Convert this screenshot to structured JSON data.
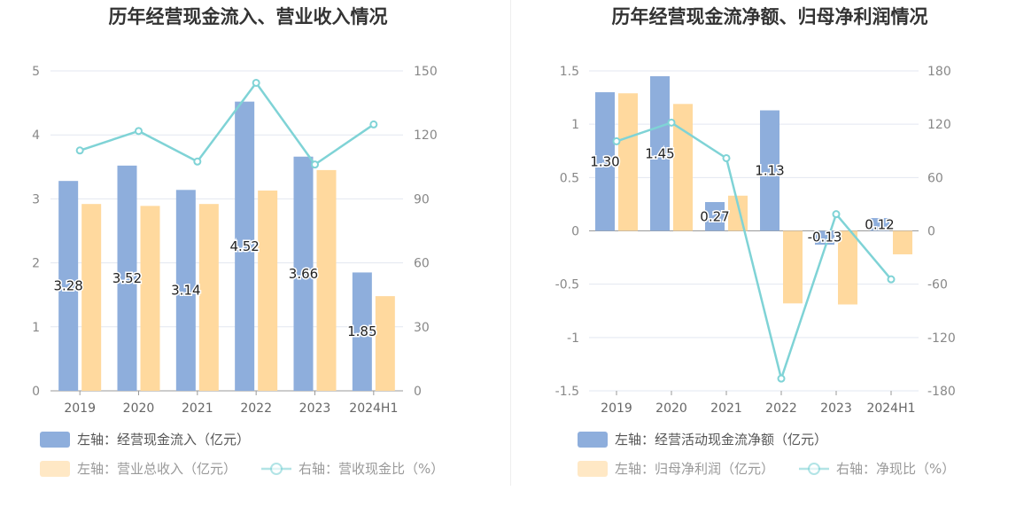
{
  "colors": {
    "bar_primary": "#8eaedc",
    "bar_secondary": "#ffd99e",
    "line": "#7fd3d6",
    "grid": "#e3e7f0",
    "axis_text": "#888888"
  },
  "chart_data": [
    {
      "type": "bar",
      "title": "历年经营现金流入、营业收入情况",
      "categories": [
        "2019",
        "2020",
        "2021",
        "2022",
        "2023",
        "2024H1"
      ],
      "y_left": {
        "ticks": [
          "0",
          "1",
          "2",
          "3",
          "4",
          "5"
        ],
        "range": [
          0,
          5
        ]
      },
      "y_right": {
        "ticks": [
          "0",
          "30",
          "60",
          "90",
          "120",
          "150"
        ],
        "range": [
          0,
          150
        ]
      },
      "series": [
        {
          "name": "左轴：经营现金流入（亿元）",
          "kind": "bar",
          "axis": "left",
          "values": [
            3.28,
            3.52,
            3.14,
            4.52,
            3.66,
            1.85
          ],
          "labels": [
            "3.28",
            "3.52",
            "3.14",
            "4.52",
            "3.66",
            "1.85"
          ]
        },
        {
          "name": "左轴：营业总收入（亿元）",
          "kind": "bar",
          "axis": "left",
          "values": [
            2.92,
            2.89,
            2.92,
            3.13,
            3.45,
            1.48
          ]
        },
        {
          "name": "右轴：营收现金比（%）",
          "kind": "line",
          "axis": "right",
          "values": [
            112.7,
            121.8,
            107.5,
            144.4,
            106.1,
            124.9
          ]
        }
      ],
      "grid": true,
      "legend_position": "bottom"
    },
    {
      "type": "bar",
      "title": "历年经营现金流净额、归母净利润情况",
      "categories": [
        "2019",
        "2020",
        "2021",
        "2022",
        "2023",
        "2024H1"
      ],
      "y_left": {
        "ticks": [
          "-1.5",
          "-1",
          "-0.5",
          "0",
          "0.5",
          "1",
          "1.5"
        ],
        "range": [
          -1.5,
          1.5
        ]
      },
      "y_right": {
        "ticks": [
          "-180",
          "-120",
          "-60",
          "0",
          "60",
          "120",
          "180"
        ],
        "range": [
          -180,
          180
        ]
      },
      "series": [
        {
          "name": "左轴：经营活动现金流净额（亿元）",
          "kind": "bar",
          "axis": "left",
          "values": [
            1.3,
            1.45,
            0.27,
            1.13,
            -0.13,
            0.12
          ],
          "labels": [
            "1.30",
            "1.45",
            "0.27",
            "1.13",
            "-0.13",
            "0.12"
          ]
        },
        {
          "name": "左轴：归母净利润（亿元）",
          "kind": "bar",
          "axis": "left",
          "values": [
            1.29,
            1.19,
            0.33,
            -0.68,
            -0.69,
            -0.22
          ]
        },
        {
          "name": "右轴：净现比（%）",
          "kind": "line",
          "axis": "right",
          "values": [
            100.8,
            121.8,
            81.8,
            -166.2,
            18.8,
            -54.5
          ]
        }
      ],
      "grid": true,
      "legend_position": "bottom"
    }
  ]
}
